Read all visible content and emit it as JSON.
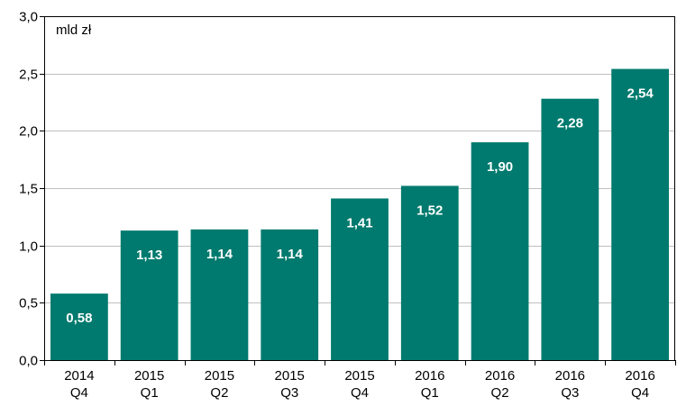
{
  "chart_data": {
    "type": "bar",
    "unit_label": "mld zł",
    "categories": [
      [
        "2014",
        "Q4"
      ],
      [
        "2015",
        "Q1"
      ],
      [
        "2015",
        "Q2"
      ],
      [
        "2015",
        "Q3"
      ],
      [
        "2015",
        "Q4"
      ],
      [
        "2016",
        "Q1"
      ],
      [
        "2016",
        "Q2"
      ],
      [
        "2016",
        "Q3"
      ],
      [
        "2016",
        "Q4"
      ]
    ],
    "values": [
      0.58,
      1.13,
      1.14,
      1.14,
      1.41,
      1.52,
      1.9,
      2.28,
      2.54
    ],
    "data_labels": [
      "0,58",
      "1,13",
      "1,14",
      "1,14",
      "1,41",
      "1,52",
      "1,90",
      "2,28",
      "2,54"
    ],
    "y_ticks": [
      0,
      0.5,
      1.0,
      1.5,
      2.0,
      2.5,
      3.0
    ],
    "y_tick_labels": [
      "0,0",
      "0,5",
      "1,0",
      "1,5",
      "2,0",
      "2,5",
      "3,0"
    ],
    "ylim": [
      0,
      3.0
    ],
    "grid": true,
    "bar_color": "#007a6e",
    "grid_color": "#bfbfbf",
    "title": "",
    "xlabel": "",
    "ylabel": ""
  }
}
